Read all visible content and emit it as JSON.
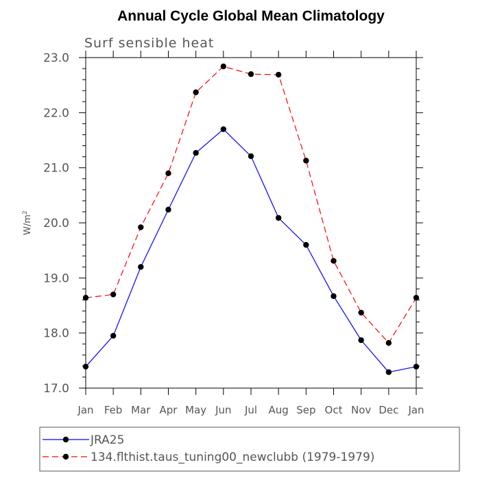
{
  "chart_data": {
    "type": "line",
    "title": "Annual Cycle Global Mean Climatology",
    "subtitle": "Surf sensible heat",
    "ylabel_base": "W/m",
    "ylabel_superscript": "2",
    "xlabel": "",
    "categories": [
      "Jan",
      "Feb",
      "Mar",
      "Apr",
      "May",
      "Jun",
      "Jul",
      "Aug",
      "Sep",
      "Oct",
      "Nov",
      "Dec",
      "Jan"
    ],
    "ylim": [
      17.0,
      23.0
    ],
    "yticks": [
      "17.0",
      "18.0",
      "19.0",
      "20.0",
      "21.0",
      "22.0",
      "23.0"
    ],
    "grid": false,
    "legend_position": "bottom",
    "series": [
      {
        "name": "JRA25",
        "color": "#0000ff",
        "dash": "solid",
        "marker": "filled-circle",
        "values": [
          17.39,
          17.95,
          19.2,
          20.24,
          21.27,
          21.7,
          21.21,
          20.09,
          19.6,
          18.67,
          17.87,
          17.29,
          17.39
        ]
      },
      {
        "name": "134.flthist.taus_tuning00_newclubb (1979-1979)",
        "color": "#ff0000",
        "dash": "dashed",
        "marker": "filled-circle",
        "values": [
          18.64,
          18.7,
          19.92,
          20.9,
          22.37,
          22.84,
          22.7,
          22.69,
          21.13,
          19.31,
          18.37,
          17.82,
          18.64
        ]
      }
    ]
  }
}
